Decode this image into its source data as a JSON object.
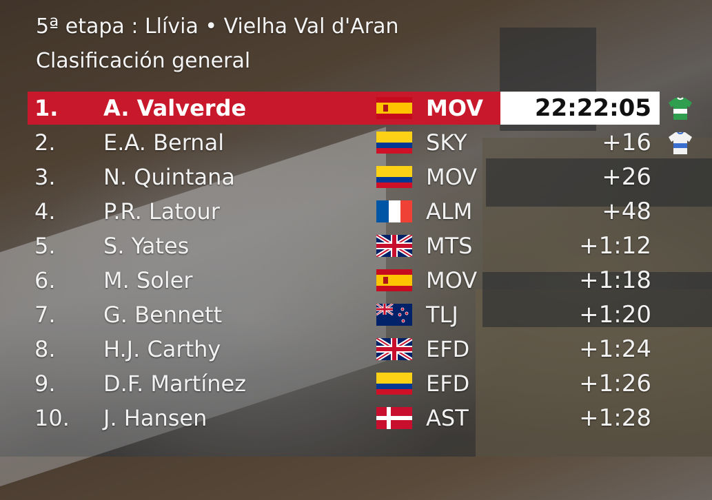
{
  "header": {
    "stage": "5ª etapa : Llívia • Vielha Val d'Aran",
    "classification": "Clasificación general"
  },
  "standings": [
    {
      "pos": "1.",
      "rider": "A. Valverde",
      "flag": "spain-flag",
      "team": "MOV",
      "time": "22:22:05",
      "jersey": "green-jersey-icon"
    },
    {
      "pos": "2.",
      "rider": "E.A. Bernal",
      "flag": "colombia-flag",
      "team": "SKY",
      "time": "+16",
      "jersey": "white-jersey-icon"
    },
    {
      "pos": "3.",
      "rider": "N. Quintana",
      "flag": "colombia-flag",
      "team": "MOV",
      "time": "+26"
    },
    {
      "pos": "4.",
      "rider": "P.R. Latour",
      "flag": "france-flag",
      "team": "ALM",
      "time": "+48"
    },
    {
      "pos": "5.",
      "rider": "S. Yates",
      "flag": "uk-flag",
      "team": "MTS",
      "time": "+1:12"
    },
    {
      "pos": "6.",
      "rider": "M. Soler",
      "flag": "spain-flag",
      "team": "MOV",
      "time": "+1:18"
    },
    {
      "pos": "7.",
      "rider": "G. Bennett",
      "flag": "new-zealand-flag",
      "team": "TLJ",
      "time": "+1:20"
    },
    {
      "pos": "8.",
      "rider": "H.J. Carthy",
      "flag": "uk-flag",
      "team": "EFD",
      "time": "+1:24"
    },
    {
      "pos": "9.",
      "rider": "D.F. Martínez",
      "flag": "colombia-flag",
      "team": "EFD",
      "time": "+1:26"
    },
    {
      "pos": "10.",
      "rider": "J. Hansen",
      "flag": "denmark-flag",
      "team": "AST",
      "time": "+1:28"
    }
  ],
  "colors": {
    "leader_band": "#c8182c",
    "leader_time_bg": "#ffffff",
    "text": "#f2f2f2"
  }
}
